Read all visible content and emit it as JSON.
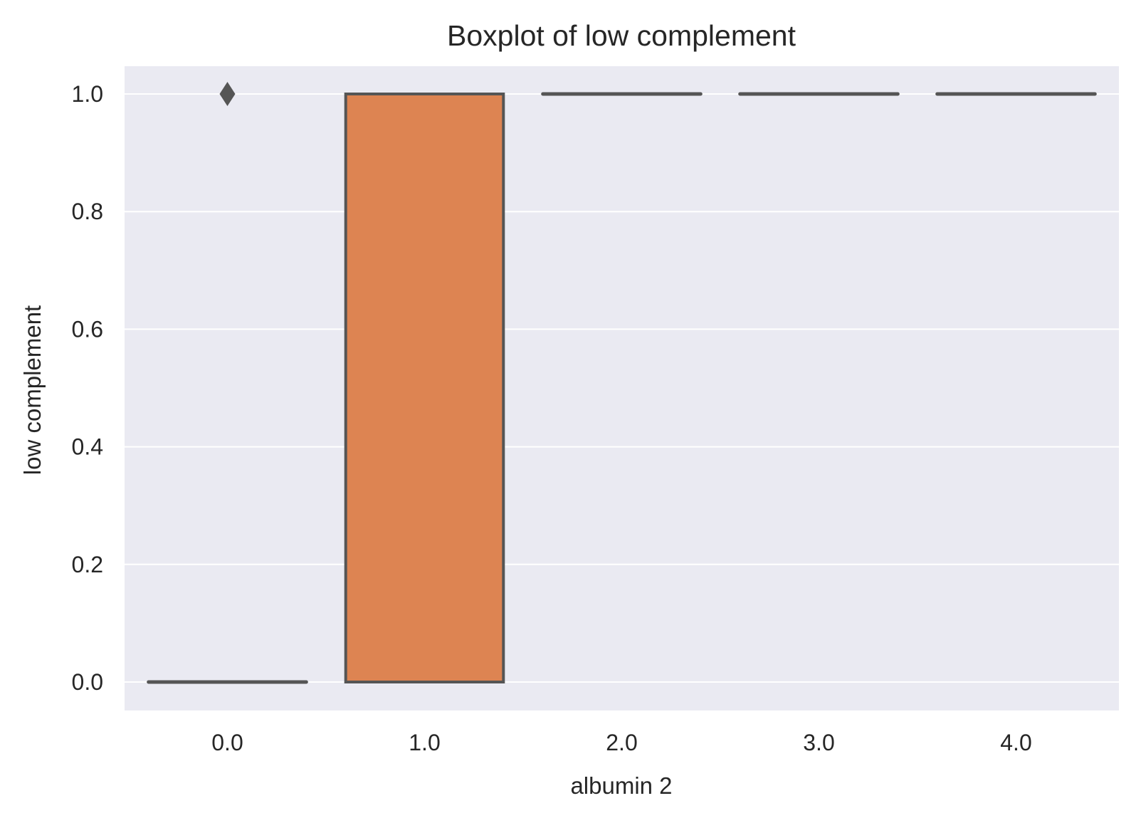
{
  "chart_data": {
    "type": "box",
    "title": "Boxplot of low complement",
    "xlabel": "albumin 2",
    "ylabel": "low complement",
    "categories": [
      "0.0",
      "1.0",
      "2.0",
      "3.0",
      "4.0"
    ],
    "boxes": [
      {
        "category": "0.0",
        "min": 0,
        "q1": 0,
        "median": 0,
        "q3": 0,
        "max": 0,
        "outliers": [
          1.0
        ],
        "color": "#4c72b0"
      },
      {
        "category": "1.0",
        "min": 0,
        "q1": 0,
        "median": 1,
        "q3": 1,
        "max": 1,
        "outliers": [],
        "color": "#dd8452"
      },
      {
        "category": "2.0",
        "min": 1,
        "q1": 1,
        "median": 1,
        "q3": 1,
        "max": 1,
        "outliers": [],
        "color": "#55a868"
      },
      {
        "category": "3.0",
        "min": 1,
        "q1": 1,
        "median": 1,
        "q3": 1,
        "max": 1,
        "outliers": [],
        "color": "#c44e52"
      },
      {
        "category": "4.0",
        "min": 1,
        "q1": 1,
        "median": 1,
        "q3": 1,
        "max": 1,
        "outliers": [],
        "color": "#8172b3"
      }
    ],
    "yticks": [
      "0.0",
      "0.2",
      "0.4",
      "0.6",
      "0.8",
      "1.0"
    ],
    "ylim": [
      -0.05,
      1.05
    ],
    "grid": true,
    "colors": {
      "background": "#eaeaf2",
      "grid": "#ffffff",
      "box_edge": "#555555",
      "text": "#262626"
    }
  }
}
